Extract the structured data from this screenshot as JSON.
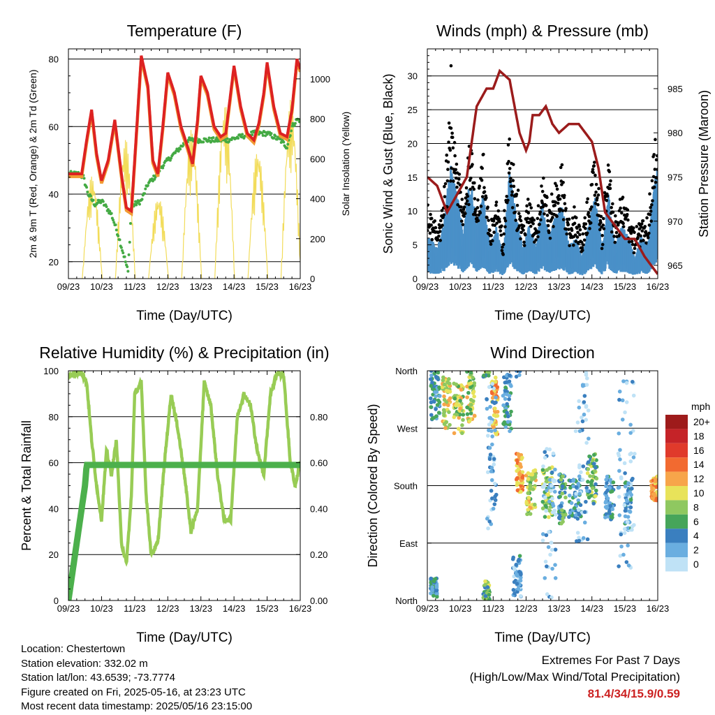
{
  "chart_data": [
    {
      "type": "line",
      "title": "Temperature (F)",
      "xlabel": "Time (Day/UTC)",
      "ylabel": "2m & 9m T (Red, Orange) & 2m Td (Green)",
      "y2label": "Solar Insolation (Yellow)",
      "x_ticks": [
        "09/23",
        "10/23",
        "11/23",
        "12/23",
        "13/23",
        "14/23",
        "15/23",
        "16/23"
      ],
      "xlim": [
        0,
        7
      ],
      "ylim": [
        15,
        83
      ],
      "y_ticks": [
        20,
        40,
        60,
        80
      ],
      "y2lim": [
        0,
        1150
      ],
      "y2_ticks": [
        0,
        200,
        400,
        600,
        800,
        1000
      ],
      "grid": true,
      "colors": {
        "t2m": "#dd2222",
        "t9m": "#f29a33",
        "td2m": "#44aa44",
        "solar": "#f2dc5a"
      },
      "series": [
        {
          "key": "t2m",
          "x": [
            0,
            0.3,
            0.4,
            0.55,
            0.7,
            0.85,
            1.0,
            1.2,
            1.4,
            1.6,
            1.75,
            1.9,
            2.0,
            2.2,
            2.4,
            2.55,
            2.7,
            2.85,
            3.0,
            3.2,
            3.4,
            3.6,
            3.75,
            3.9,
            4.0,
            4.2,
            4.4,
            4.6,
            4.75,
            4.9,
            5.0,
            5.2,
            5.4,
            5.6,
            5.75,
            5.9,
            6.0,
            6.2,
            6.4,
            6.6,
            6.75,
            6.9,
            7.0
          ],
          "y": [
            46,
            46,
            46,
            56,
            65,
            52,
            44,
            50,
            62,
            46,
            36,
            35,
            50,
            81,
            72,
            50,
            46,
            60,
            76,
            70,
            60,
            54,
            49,
            62,
            75,
            70,
            60,
            57,
            58,
            70,
            78,
            66,
            58,
            56,
            61,
            70,
            79,
            66,
            58,
            57,
            65,
            80,
            77
          ]
        },
        {
          "key": "td2m",
          "x": [
            0,
            0.3,
            0.45,
            0.6,
            0.8,
            1.0,
            1.3,
            1.5,
            1.7,
            1.8,
            1.9,
            2.0,
            2.2,
            2.4,
            2.6,
            2.8,
            3.0,
            3.3,
            3.6,
            4.0,
            4.4,
            4.8,
            5.2,
            5.6,
            5.9,
            6.0,
            6.2,
            6.4,
            6.6,
            6.75,
            6.9,
            7.0
          ],
          "y": [
            46,
            46,
            45,
            40,
            37,
            38,
            34,
            28,
            21,
            17,
            36,
            37,
            38,
            43,
            45,
            48,
            50,
            53,
            56,
            56,
            56,
            56,
            57,
            58,
            58,
            58,
            57,
            56,
            54,
            60,
            62,
            62
          ]
        }
      ]
    },
    {
      "type": "scatter",
      "title": "Winds (mph) & Pressure (mb)",
      "xlabel": "Time (Day/UTC)",
      "ylabel": "Sonic Wind & Gust (Blue, Black)",
      "y2label": "Station Pressure (Maroon)",
      "x_ticks": [
        "09/23",
        "10/23",
        "11/23",
        "12/23",
        "13/23",
        "14/23",
        "15/23",
        "16/23"
      ],
      "xlim": [
        0,
        7
      ],
      "ylim": [
        0,
        34
      ],
      "y_ticks": [
        0,
        5,
        10,
        15,
        20,
        25,
        30
      ],
      "y2lim": [
        963.5,
        989.5
      ],
      "y2_ticks": [
        965,
        970,
        975,
        980,
        985
      ],
      "grid": true,
      "colors": {
        "wind": "#4a90c8",
        "gust": "#000000",
        "pressure": "#9b1b1b"
      },
      "series": [
        {
          "key": "pressure",
          "x": [
            0,
            0.3,
            0.6,
            0.9,
            1.2,
            1.5,
            1.8,
            2.0,
            2.2,
            2.5,
            2.8,
            3.0,
            3.1,
            3.2,
            3.4,
            3.6,
            3.8,
            4.0,
            4.3,
            4.6,
            5.0,
            5.2,
            5.4,
            5.6,
            5.8,
            6.0,
            6.3,
            6.6,
            6.8,
            7.0
          ],
          "y": [
            975,
            974,
            971,
            973,
            975,
            983,
            985,
            985,
            987,
            986,
            980,
            978,
            979,
            982,
            982,
            983,
            981,
            980,
            981,
            981,
            979,
            976,
            971,
            970,
            969,
            968,
            968,
            966,
            965,
            964
          ]
        }
      ]
    },
    {
      "type": "line",
      "title": "Relative Humidity (%) & Precipitation (in)",
      "xlabel": "Time (Day/UTC)",
      "ylabel": "Percent & Total Rainfall",
      "x_ticks": [
        "09/23",
        "10/23",
        "11/23",
        "12/23",
        "13/23",
        "14/23",
        "15/23",
        "16/23"
      ],
      "xlim": [
        0,
        7
      ],
      "ylim": [
        0,
        100
      ],
      "y_ticks": [
        0,
        20,
        40,
        60,
        80,
        100
      ],
      "y2lim": [
        0,
        1.0
      ],
      "y2_ticks": [
        "0.00",
        "0.20",
        "0.40",
        "0.60",
        "0.80"
      ],
      "grid": true,
      "colors": {
        "rh": "#98cc55",
        "precip": "#4cb04c"
      },
      "series": [
        {
          "key": "rh",
          "x": [
            0,
            0.2,
            0.4,
            0.55,
            0.7,
            0.85,
            1.0,
            1.15,
            1.3,
            1.45,
            1.6,
            1.75,
            1.9,
            2.0,
            2.2,
            2.35,
            2.5,
            2.7,
            2.9,
            3.1,
            3.3,
            3.5,
            3.7,
            3.9,
            4.1,
            4.3,
            4.5,
            4.7,
            4.9,
            5.1,
            5.3,
            5.5,
            5.7,
            5.9,
            6.1,
            6.3,
            6.5,
            6.7,
            6.85,
            7.0
          ],
          "y": [
            97,
            99,
            99,
            95,
            70,
            50,
            35,
            65,
            55,
            70,
            25,
            16,
            45,
            90,
            95,
            45,
            20,
            25,
            60,
            90,
            75,
            55,
            30,
            40,
            95,
            85,
            55,
            35,
            35,
            80,
            90,
            85,
            65,
            55,
            90,
            99,
            98,
            60,
            50,
            60
          ]
        },
        {
          "key": "precip",
          "x": [
            0,
            0.05,
            0.1,
            0.2,
            0.3,
            0.4,
            0.5,
            0.55,
            0.6,
            0.7,
            5.8,
            7.0
          ],
          "y": [
            0,
            0.05,
            0.1,
            0.2,
            0.3,
            0.4,
            0.5,
            0.59,
            0.59,
            0.59,
            0.59,
            0.59
          ]
        }
      ]
    },
    {
      "type": "scatter",
      "title": "Wind Direction",
      "xlabel": "Time (Day/UTC)",
      "ylabel": "Direction (Colored By Speed)",
      "x_ticks": [
        "09/23",
        "10/23",
        "11/23",
        "12/23",
        "13/23",
        "14/23",
        "15/23",
        "16/23"
      ],
      "xlim": [
        0,
        7
      ],
      "ylim": [
        0,
        360
      ],
      "y_tick_labels": [
        "North",
        "East",
        "South",
        "West",
        "North"
      ],
      "y_tick_values": [
        0,
        90,
        180,
        270,
        360
      ],
      "grid": true,
      "legend": {
        "title": "mph",
        "placement": "right",
        "labels": [
          "20+",
          "18",
          "16",
          "14",
          "12",
          "10",
          "8",
          "6",
          "4",
          "2",
          "0"
        ],
        "colors": [
          "#9e1b1b",
          "#c52328",
          "#e03a2b",
          "#f26a30",
          "#f7a54a",
          "#e8e35a",
          "#8fc860",
          "#46a55a",
          "#3a7fbf",
          "#6aaee0",
          "#bfe2f6"
        ]
      }
    }
  ],
  "info": {
    "location": "Location: Chestertown",
    "elevation": "Station elevation: 332.02 m",
    "latlon": "Station lat/lon: 43.6539; -73.7774",
    "created": "Figure created on Fri, 2025-05-16, at 23:23 UTC",
    "timestamp": "Most recent data timestamp: 2025/05/16 23:15:00"
  },
  "extremes": {
    "title": "Extremes For Past 7 Days",
    "subtitle": "(High/Low/Max Wind/Total Precipitation)",
    "values": "81.4/34/15.9/0.59"
  }
}
